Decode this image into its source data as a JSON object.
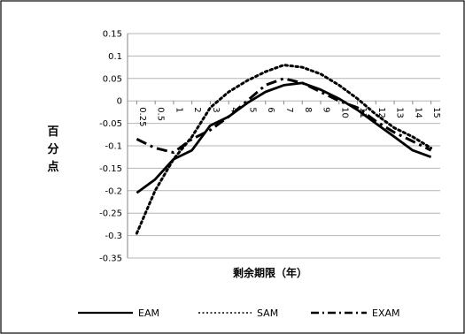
{
  "chart_data": {
    "type": "line",
    "xlabel": "剩余期限（年）",
    "ylabel": "百分点",
    "ylim": [
      -0.35,
      0.15
    ],
    "yticks": [
      0.15,
      0.1,
      0.05,
      0,
      -0.05,
      -0.1,
      -0.15,
      -0.2,
      -0.25,
      -0.3,
      -0.35
    ],
    "categories": [
      "0.25",
      "0.5",
      "1",
      "2",
      "3",
      "4",
      "5",
      "6",
      "7",
      "8",
      "9",
      "10",
      "11",
      "12",
      "13",
      "14",
      "15"
    ],
    "grid": "horizontal",
    "legend_position": "bottom",
    "series": [
      {
        "name": "EAM",
        "style": "solid",
        "values": [
          -0.205,
          -0.175,
          -0.13,
          -0.11,
          -0.055,
          -0.035,
          -0.005,
          0.02,
          0.035,
          0.04,
          0.025,
          0.005,
          -0.02,
          -0.05,
          -0.08,
          -0.11,
          -0.125
        ]
      },
      {
        "name": "SAM",
        "style": "dotted",
        "values": [
          -0.295,
          -0.2,
          -0.13,
          -0.08,
          -0.015,
          0.02,
          0.045,
          0.065,
          0.08,
          0.075,
          0.06,
          0.035,
          0.005,
          -0.03,
          -0.06,
          -0.08,
          -0.105
        ]
      },
      {
        "name": "EXAM",
        "style": "dashdot",
        "values": [
          -0.085,
          -0.105,
          -0.115,
          -0.085,
          -0.065,
          -0.035,
          0.0,
          0.035,
          0.05,
          0.04,
          0.02,
          0.0,
          -0.015,
          -0.045,
          -0.07,
          -0.09,
          -0.11
        ]
      }
    ],
    "colors": {
      "line": "#000000",
      "grid": "#b4b4b4",
      "frame": "#000000"
    }
  }
}
